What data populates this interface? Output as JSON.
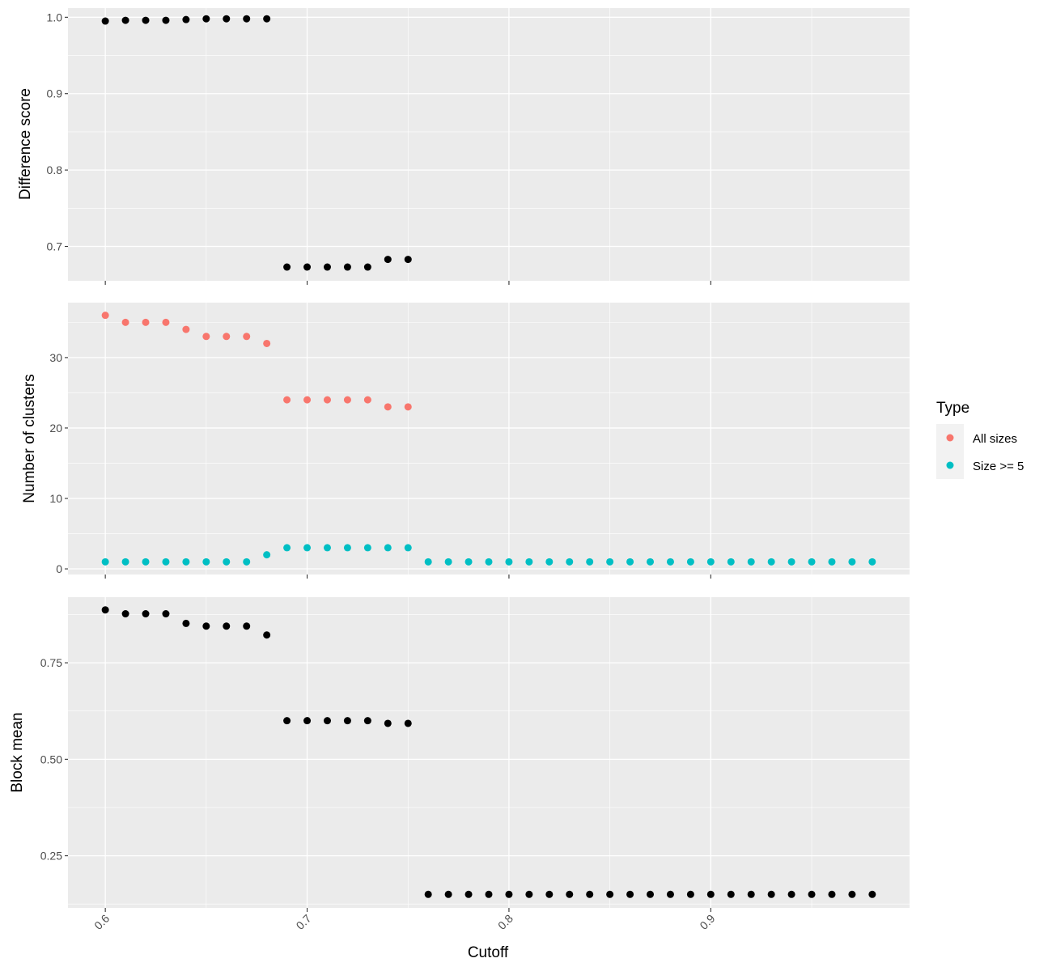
{
  "chart_data": [
    {
      "type": "scatter",
      "ylabel": "Difference score",
      "ylim": [
        0.655,
        1.012
      ],
      "yticks": [
        0.7,
        0.8,
        0.9,
        1.0
      ],
      "yticklabels": [
        "0.7",
        "0.8",
        "0.9",
        "1.0"
      ],
      "grid": true,
      "color": "#000000",
      "series": [
        {
          "x": [
            0.6,
            0.61,
            0.62,
            0.63,
            0.64,
            0.65,
            0.66,
            0.67,
            0.68,
            0.69,
            0.7,
            0.71,
            0.72,
            0.73,
            0.74,
            0.75
          ],
          "y": [
            0.995,
            0.996,
            0.996,
            0.996,
            0.997,
            0.998,
            0.998,
            0.998,
            0.998,
            0.673,
            0.673,
            0.673,
            0.673,
            0.673,
            0.683,
            0.683
          ]
        }
      ]
    },
    {
      "type": "scatter",
      "ylabel": "Number of clusters",
      "ylim": [
        -0.8,
        37.8
      ],
      "yticks": [
        0,
        10,
        20,
        30
      ],
      "yticklabels": [
        "0",
        "10",
        "20",
        "30"
      ],
      "grid": true,
      "legend": {
        "title": "Type",
        "placement": "right",
        "items": [
          {
            "label": "All sizes",
            "color": "#F8766D"
          },
          {
            "label": "Size >= 5",
            "color": "#00BFC4"
          }
        ]
      },
      "series": [
        {
          "name": "All sizes",
          "color": "#F8766D",
          "x": [
            0.6,
            0.61,
            0.62,
            0.63,
            0.64,
            0.65,
            0.66,
            0.67,
            0.68,
            0.69,
            0.7,
            0.71,
            0.72,
            0.73,
            0.74,
            0.75
          ],
          "y": [
            36,
            35,
            35,
            35,
            34,
            33,
            33,
            33,
            32,
            24,
            24,
            24,
            24,
            24,
            23,
            23
          ]
        },
        {
          "name": "Size >= 5",
          "color": "#00BFC4",
          "x": [
            0.6,
            0.61,
            0.62,
            0.63,
            0.64,
            0.65,
            0.66,
            0.67,
            0.68,
            0.69,
            0.7,
            0.71,
            0.72,
            0.73,
            0.74,
            0.75,
            0.76,
            0.77,
            0.78,
            0.79,
            0.8,
            0.81,
            0.82,
            0.83,
            0.84,
            0.85,
            0.86,
            0.87,
            0.88,
            0.89,
            0.9,
            0.91,
            0.92,
            0.93,
            0.94,
            0.95,
            0.96,
            0.97,
            0.98
          ],
          "y": [
            1,
            1,
            1,
            1,
            1,
            1,
            1,
            1,
            2,
            3,
            3,
            3,
            3,
            3,
            3,
            3,
            1,
            1,
            1,
            1,
            1,
            1,
            1,
            1,
            1,
            1,
            1,
            1,
            1,
            1,
            1,
            1,
            1,
            1,
            1,
            1,
            1,
            1,
            1
          ]
        }
      ]
    },
    {
      "type": "scatter",
      "ylabel": "Block mean",
      "xlabel": "Cutoff",
      "ylim": [
        0.115,
        0.92
      ],
      "yticks": [
        0.25,
        0.5,
        0.75
      ],
      "yticklabels": [
        "0.25",
        "0.50",
        "0.75"
      ],
      "grid": true,
      "color": "#000000",
      "series": [
        {
          "x": [
            0.6,
            0.61,
            0.62,
            0.63,
            0.64,
            0.65,
            0.66,
            0.67,
            0.68,
            0.69,
            0.7,
            0.71,
            0.72,
            0.73,
            0.74,
            0.75,
            0.76,
            0.77,
            0.78,
            0.79,
            0.8,
            0.81,
            0.82,
            0.83,
            0.84,
            0.85,
            0.86,
            0.87,
            0.88,
            0.89,
            0.9,
            0.91,
            0.92,
            0.93,
            0.94,
            0.95,
            0.96,
            0.97,
            0.98
          ],
          "y": [
            0.887,
            0.877,
            0.877,
            0.877,
            0.852,
            0.845,
            0.845,
            0.845,
            0.822,
            0.6,
            0.6,
            0.6,
            0.6,
            0.6,
            0.593,
            0.593,
            0.15,
            0.15,
            0.15,
            0.15,
            0.15,
            0.15,
            0.15,
            0.15,
            0.15,
            0.15,
            0.15,
            0.15,
            0.15,
            0.15,
            0.15,
            0.15,
            0.15,
            0.15,
            0.15,
            0.15,
            0.15,
            0.15,
            0.15
          ]
        }
      ]
    }
  ],
  "x_axis": {
    "title": "Cutoff",
    "xlim": [
      0.5815,
      0.9985
    ],
    "ticks": [
      0.6,
      0.7,
      0.8,
      0.9
    ],
    "ticklabels": [
      "0.6",
      "0.7",
      "0.8",
      "0.9"
    ]
  },
  "style": {
    "panel_bg": "#EBEBEB",
    "grid_color": "#FFFFFF",
    "text_color": "#4D4D4D",
    "tick_color": "#333333"
  }
}
